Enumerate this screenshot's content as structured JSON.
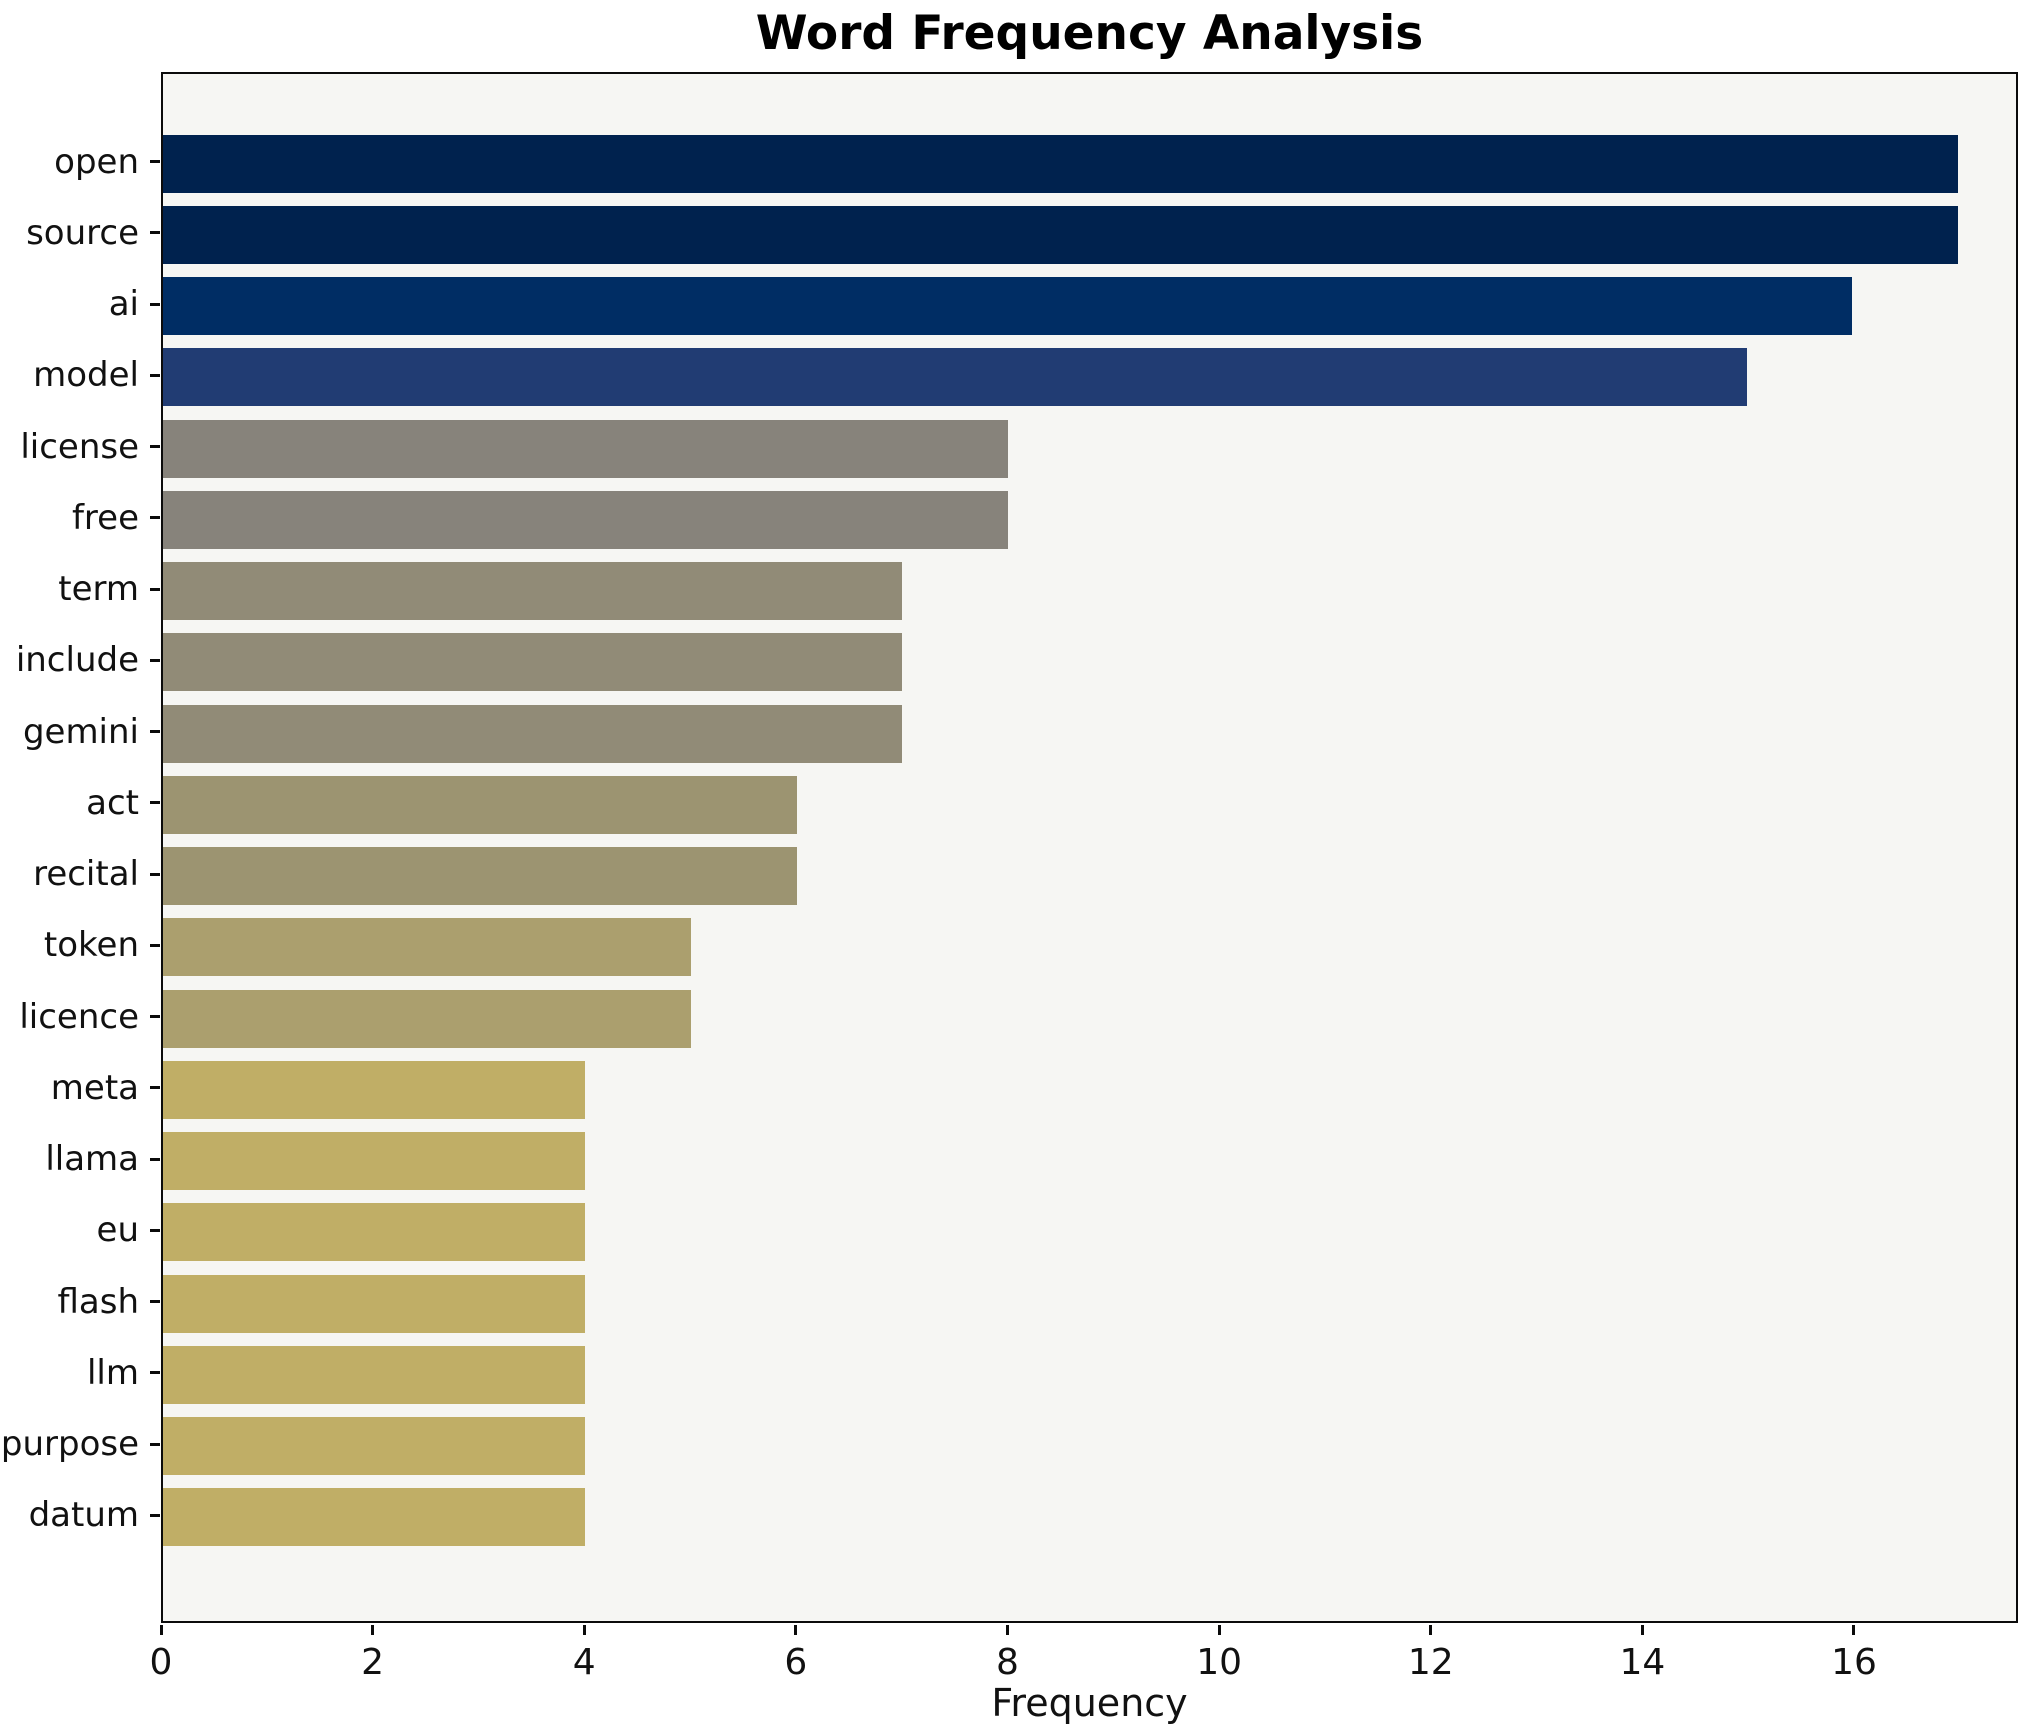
{
  "title": "Word Frequency Analysis",
  "x_axis_label": "Frequency",
  "colors": {
    "figure_background": "#ffffff",
    "plot_background": "#f6f6f3",
    "spine": "#0b0b0b",
    "text": "#111111"
  },
  "chart_data": {
    "type": "bar",
    "orientation": "horizontal",
    "title": "Word Frequency Analysis",
    "xlabel": "Frequency",
    "ylabel": "",
    "colormap": "cividis (mapped by frequency, high=dark blue, low=khaki)",
    "grid": false,
    "legend": false,
    "xlim": [
      0,
      17.55
    ],
    "xticks": [
      0,
      2,
      4,
      6,
      8,
      10,
      12,
      14,
      16
    ],
    "categories": [
      "open",
      "source",
      "ai",
      "model",
      "license",
      "free",
      "term",
      "include",
      "gemini",
      "act",
      "recital",
      "token",
      "licence",
      "meta",
      "llama",
      "eu",
      "flash",
      "llm",
      "purpose",
      "datum"
    ],
    "values": [
      17,
      17,
      16,
      15,
      8,
      8,
      7,
      7,
      7,
      6,
      6,
      5,
      5,
      4,
      4,
      4,
      4,
      4,
      4,
      4
    ],
    "bar_colors": [
      "#00224e",
      "#00224e",
      "#002d64",
      "#213c73",
      "#87837b",
      "#87837b",
      "#918b77",
      "#918b77",
      "#918b77",
      "#9c9471",
      "#9c9471",
      "#ab9f6e",
      "#ab9f6e",
      "#c0ae66",
      "#c0ae66",
      "#c0ae66",
      "#c0ae66",
      "#c0ae66",
      "#c0ae66",
      "#c0ae66"
    ]
  }
}
